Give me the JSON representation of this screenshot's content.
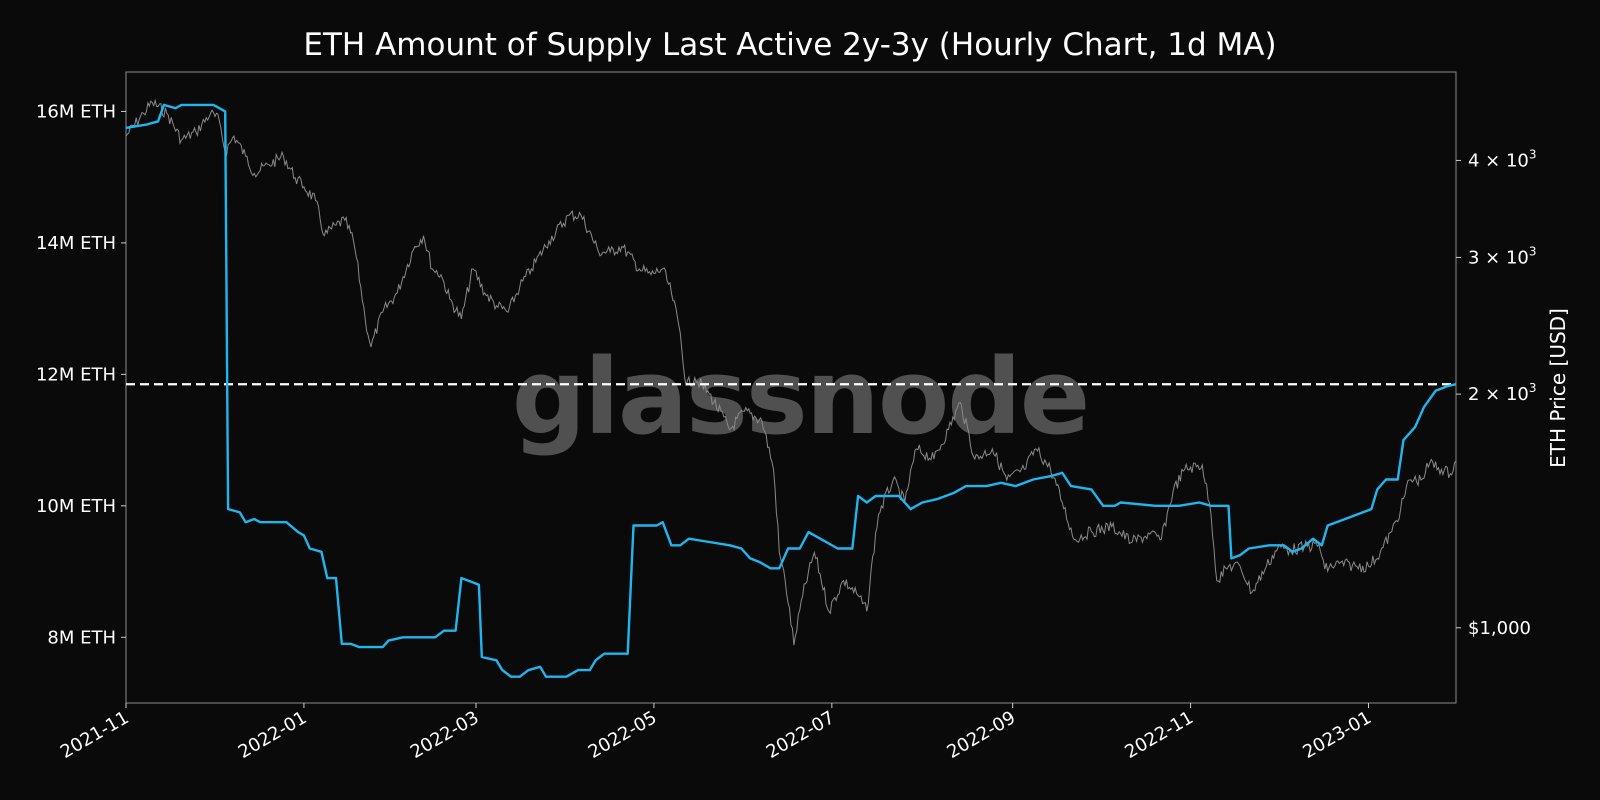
{
  "chart_data": {
    "type": "line",
    "title": "ETH Amount of Supply Last Active 2y-3y (Hourly Chart, 1d MA)",
    "watermark": "glassnode",
    "x_range": [
      "2021-11-01",
      "2023-01-31"
    ],
    "x_ticks": [
      "2021-11",
      "2022-01",
      "2022-03",
      "2022-05",
      "2022-07",
      "2022-09",
      "2022-11",
      "2023-01"
    ],
    "y_left": {
      "label": "",
      "range": [
        7.0,
        16.6
      ],
      "unit": "M ETH",
      "ticks": [
        {
          "value": 8,
          "label": "8M ETH"
        },
        {
          "value": 10,
          "label": "10M ETH"
        },
        {
          "value": 12,
          "label": "12M ETH"
        },
        {
          "value": 14,
          "label": "14M ETH"
        },
        {
          "value": 16,
          "label": "16M ETH"
        }
      ]
    },
    "y_right": {
      "label": "ETH Price [USD]",
      "scale": "log",
      "range": [
        800,
        5200
      ],
      "tick_labels": [
        "$1,000",
        "2 × 10³",
        "3 × 10³",
        "4 × 10³"
      ],
      "ticks": [
        {
          "value": 1000,
          "label": "$1,000"
        },
        {
          "value": 2000,
          "label": "2 × 10",
          "exp": "3"
        },
        {
          "value": 3000,
          "label": "3 × 10",
          "exp": "3"
        },
        {
          "value": 4000,
          "label": "4 × 10",
          "exp": "3"
        }
      ]
    },
    "reference_line": {
      "value": 11.85,
      "style": "dashed",
      "color": "#ffffff"
    },
    "grid": false,
    "legend": "none",
    "series": [
      {
        "axis": "left",
        "color": "#1fb6ef",
        "points": [
          [
            "2021-11-01",
            15.75
          ],
          [
            "2021-11-08",
            15.8
          ],
          [
            "2021-11-12",
            15.85
          ],
          [
            "2021-11-14",
            16.1
          ],
          [
            "2021-11-18",
            16.05
          ],
          [
            "2021-11-20",
            16.1
          ],
          [
            "2021-12-01",
            16.1
          ],
          [
            "2021-12-05",
            16.0
          ],
          [
            "2021-12-06",
            9.95
          ],
          [
            "2021-12-10",
            9.9
          ],
          [
            "2021-12-12",
            9.75
          ],
          [
            "2021-12-15",
            9.8
          ],
          [
            "2021-12-17",
            9.75
          ],
          [
            "2021-12-26",
            9.75
          ],
          [
            "2021-12-30",
            9.6
          ],
          [
            "2022-01-01",
            9.55
          ],
          [
            "2022-01-03",
            9.35
          ],
          [
            "2022-01-07",
            9.3
          ],
          [
            "2022-01-09",
            8.9
          ],
          [
            "2022-01-12",
            8.9
          ],
          [
            "2022-01-14",
            7.9
          ],
          [
            "2022-01-17",
            7.9
          ],
          [
            "2022-01-20",
            7.85
          ],
          [
            "2022-01-28",
            7.85
          ],
          [
            "2022-01-30",
            7.95
          ],
          [
            "2022-02-04",
            8.0
          ],
          [
            "2022-02-15",
            8.0
          ],
          [
            "2022-02-18",
            8.1
          ],
          [
            "2022-02-22",
            8.1
          ],
          [
            "2022-02-24",
            8.9
          ],
          [
            "2022-02-27",
            8.85
          ],
          [
            "2022-03-02",
            8.8
          ],
          [
            "2022-03-03",
            7.7
          ],
          [
            "2022-03-08",
            7.65
          ],
          [
            "2022-03-10",
            7.5
          ],
          [
            "2022-03-13",
            7.4
          ],
          [
            "2022-03-16",
            7.4
          ],
          [
            "2022-03-19",
            7.5
          ],
          [
            "2022-03-23",
            7.55
          ],
          [
            "2022-03-25",
            7.4
          ],
          [
            "2022-04-01",
            7.4
          ],
          [
            "2022-04-05",
            7.5
          ],
          [
            "2022-04-09",
            7.5
          ],
          [
            "2022-04-11",
            7.65
          ],
          [
            "2022-04-14",
            7.75
          ],
          [
            "2022-04-22",
            7.75
          ],
          [
            "2022-04-24",
            9.7
          ],
          [
            "2022-05-02",
            9.7
          ],
          [
            "2022-05-04",
            9.75
          ],
          [
            "2022-05-07",
            9.4
          ],
          [
            "2022-05-10",
            9.4
          ],
          [
            "2022-05-13",
            9.5
          ],
          [
            "2022-05-20",
            9.45
          ],
          [
            "2022-05-27",
            9.4
          ],
          [
            "2022-05-31",
            9.35
          ],
          [
            "2022-06-03",
            9.2
          ],
          [
            "2022-06-06",
            9.15
          ],
          [
            "2022-06-10",
            9.05
          ],
          [
            "2022-06-13",
            9.05
          ],
          [
            "2022-06-16",
            9.35
          ],
          [
            "2022-06-20",
            9.35
          ],
          [
            "2022-06-23",
            9.6
          ],
          [
            "2022-06-27",
            9.5
          ],
          [
            "2022-07-03",
            9.35
          ],
          [
            "2022-07-08",
            9.35
          ],
          [
            "2022-07-10",
            10.15
          ],
          [
            "2022-07-13",
            10.05
          ],
          [
            "2022-07-16",
            10.15
          ],
          [
            "2022-07-24",
            10.15
          ],
          [
            "2022-07-28",
            9.95
          ],
          [
            "2022-08-01",
            10.05
          ],
          [
            "2022-08-06",
            10.1
          ],
          [
            "2022-08-12",
            10.2
          ],
          [
            "2022-08-16",
            10.3
          ],
          [
            "2022-08-23",
            10.3
          ],
          [
            "2022-08-28",
            10.35
          ],
          [
            "2022-09-02",
            10.3
          ],
          [
            "2022-09-08",
            10.4
          ],
          [
            "2022-09-14",
            10.45
          ],
          [
            "2022-09-18",
            10.5
          ],
          [
            "2022-09-21",
            10.3
          ],
          [
            "2022-09-28",
            10.25
          ],
          [
            "2022-10-02",
            10.0
          ],
          [
            "2022-10-06",
            10.0
          ],
          [
            "2022-10-08",
            10.05
          ],
          [
            "2022-10-20",
            10.0
          ],
          [
            "2022-10-28",
            10.0
          ],
          [
            "2022-11-04",
            10.05
          ],
          [
            "2022-11-08",
            10.0
          ],
          [
            "2022-11-14",
            10.0
          ],
          [
            "2022-11-15",
            9.2
          ],
          [
            "2022-11-18",
            9.25
          ],
          [
            "2022-11-21",
            9.35
          ],
          [
            "2022-11-28",
            9.4
          ],
          [
            "2022-12-03",
            9.4
          ],
          [
            "2022-12-06",
            9.3
          ],
          [
            "2022-12-09",
            9.35
          ],
          [
            "2022-12-13",
            9.5
          ],
          [
            "2022-12-16",
            9.4
          ],
          [
            "2022-12-18",
            9.7
          ],
          [
            "2022-12-24",
            9.8
          ],
          [
            "2022-12-30",
            9.9
          ],
          [
            "2023-01-02",
            9.95
          ],
          [
            "2023-01-04",
            10.25
          ],
          [
            "2023-01-07",
            10.4
          ],
          [
            "2023-01-11",
            10.4
          ],
          [
            "2023-01-13",
            11.0
          ],
          [
            "2023-01-17",
            11.2
          ],
          [
            "2023-01-20",
            11.5
          ],
          [
            "2023-01-24",
            11.75
          ],
          [
            "2023-01-28",
            11.82
          ],
          [
            "2023-01-31",
            11.85
          ]
        ]
      },
      {
        "axis": "right",
        "color": "#8a8a8a",
        "points": [
          [
            "2021-11-01",
            4300
          ],
          [
            "2021-11-07",
            4600
          ],
          [
            "2021-11-10",
            4750
          ],
          [
            "2021-11-15",
            4600
          ],
          [
            "2021-11-20",
            4250
          ],
          [
            "2021-11-25",
            4350
          ],
          [
            "2021-11-30",
            4600
          ],
          [
            "2021-12-03",
            4500
          ],
          [
            "2021-12-05",
            4100
          ],
          [
            "2021-12-08",
            4300
          ],
          [
            "2021-12-12",
            4050
          ],
          [
            "2021-12-15",
            3850
          ],
          [
            "2021-12-20",
            3950
          ],
          [
            "2021-12-25",
            4050
          ],
          [
            "2021-12-29",
            3800
          ],
          [
            "2022-01-01",
            3700
          ],
          [
            "2022-01-05",
            3550
          ],
          [
            "2022-01-08",
            3200
          ],
          [
            "2022-01-12",
            3300
          ],
          [
            "2022-01-15",
            3350
          ],
          [
            "2022-01-18",
            3150
          ],
          [
            "2022-01-22",
            2500
          ],
          [
            "2022-01-24",
            2300
          ],
          [
            "2022-01-28",
            2550
          ],
          [
            "2022-02-02",
            2700
          ],
          [
            "2022-02-08",
            3100
          ],
          [
            "2022-02-11",
            3200
          ],
          [
            "2022-02-14",
            2900
          ],
          [
            "2022-02-17",
            2850
          ],
          [
            "2022-02-20",
            2650
          ],
          [
            "2022-02-24",
            2500
          ],
          [
            "2022-02-28",
            2900
          ],
          [
            "2022-03-04",
            2700
          ],
          [
            "2022-03-08",
            2600
          ],
          [
            "2022-03-12",
            2550
          ],
          [
            "2022-03-16",
            2750
          ],
          [
            "2022-03-20",
            2900
          ],
          [
            "2022-03-26",
            3150
          ],
          [
            "2022-04-02",
            3400
          ],
          [
            "2022-04-06",
            3400
          ],
          [
            "2022-04-12",
            3050
          ],
          [
            "2022-04-16",
            3050
          ],
          [
            "2022-04-20",
            3100
          ],
          [
            "2022-04-26",
            2900
          ],
          [
            "2022-04-30",
            2850
          ],
          [
            "2022-05-04",
            2900
          ],
          [
            "2022-05-07",
            2700
          ],
          [
            "2022-05-10",
            2400
          ],
          [
            "2022-05-12",
            2050
          ],
          [
            "2022-05-15",
            2100
          ],
          [
            "2022-05-20",
            2000
          ],
          [
            "2022-05-27",
            1800
          ],
          [
            "2022-06-01",
            1900
          ],
          [
            "2022-06-07",
            1850
          ],
          [
            "2022-06-11",
            1600
          ],
          [
            "2022-06-13",
            1250
          ],
          [
            "2022-06-15",
            1150
          ],
          [
            "2022-06-18",
            950
          ],
          [
            "2022-06-21",
            1100
          ],
          [
            "2022-06-25",
            1250
          ],
          [
            "2022-06-30",
            1050
          ],
          [
            "2022-07-05",
            1150
          ],
          [
            "2022-07-10",
            1100
          ],
          [
            "2022-07-13",
            1050
          ],
          [
            "2022-07-17",
            1400
          ],
          [
            "2022-07-22",
            1550
          ],
          [
            "2022-07-26",
            1450
          ],
          [
            "2022-07-30",
            1700
          ],
          [
            "2022-08-05",
            1650
          ],
          [
            "2022-08-10",
            1800
          ],
          [
            "2022-08-14",
            1950
          ],
          [
            "2022-08-19",
            1650
          ],
          [
            "2022-08-25",
            1700
          ],
          [
            "2022-08-30",
            1550
          ],
          [
            "2022-09-05",
            1600
          ],
          [
            "2022-09-09",
            1700
          ],
          [
            "2022-09-14",
            1600
          ],
          [
            "2022-09-18",
            1450
          ],
          [
            "2022-09-22",
            1300
          ],
          [
            "2022-09-28",
            1330
          ],
          [
            "2022-10-05",
            1350
          ],
          [
            "2022-10-12",
            1290
          ],
          [
            "2022-10-18",
            1320
          ],
          [
            "2022-10-22",
            1300
          ],
          [
            "2022-10-26",
            1500
          ],
          [
            "2022-10-30",
            1600
          ],
          [
            "2022-11-05",
            1620
          ],
          [
            "2022-11-08",
            1400
          ],
          [
            "2022-11-10",
            1150
          ],
          [
            "2022-11-14",
            1200
          ],
          [
            "2022-11-18",
            1200
          ],
          [
            "2022-11-22",
            1110
          ],
          [
            "2022-11-27",
            1200
          ],
          [
            "2022-12-01",
            1270
          ],
          [
            "2022-12-05",
            1260
          ],
          [
            "2022-12-10",
            1270
          ],
          [
            "2022-12-15",
            1280
          ],
          [
            "2022-12-17",
            1190
          ],
          [
            "2022-12-22",
            1210
          ],
          [
            "2022-12-28",
            1200
          ],
          [
            "2023-01-01",
            1200
          ],
          [
            "2023-01-05",
            1250
          ],
          [
            "2023-01-09",
            1330
          ],
          [
            "2023-01-12",
            1420
          ],
          [
            "2023-01-15",
            1550
          ],
          [
            "2023-01-19",
            1550
          ],
          [
            "2023-01-22",
            1630
          ],
          [
            "2023-01-26",
            1600
          ],
          [
            "2023-01-29",
            1580
          ],
          [
            "2023-01-31",
            1640
          ]
        ]
      }
    ]
  }
}
